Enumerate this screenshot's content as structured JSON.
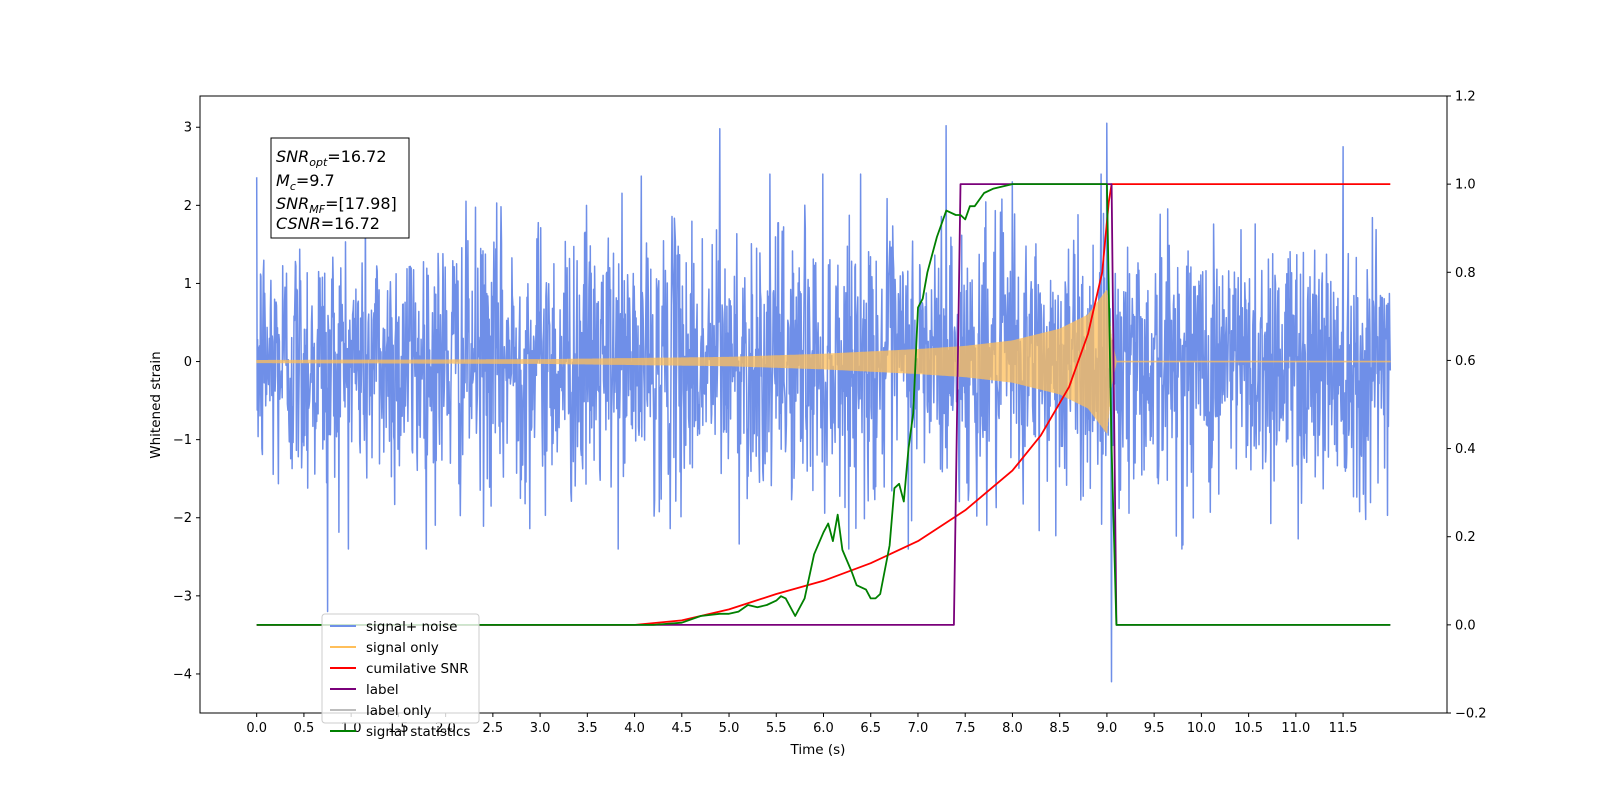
{
  "chart_data": {
    "type": "line",
    "xlabel": "Time (s)",
    "ylabel": "Whitened strain",
    "xlim": [
      -0.6,
      12.6
    ],
    "ylim": [
      -4.5,
      3.4
    ],
    "y2lim": [
      -0.2,
      1.2
    ],
    "x_ticks": [
      "0.0",
      "0.5",
      "1.0",
      "1.5",
      "2.0",
      "2.5",
      "3.0",
      "3.5",
      "4.0",
      "4.5",
      "5.0",
      "5.5",
      "6.0",
      "6.5",
      "7.0",
      "7.5",
      "8.0",
      "8.5",
      "9.0",
      "9.5",
      "10.0",
      "10.5",
      "11.0",
      "11.5"
    ],
    "y_ticks": [
      "3",
      "2",
      "1",
      "0",
      "−1",
      "−2",
      "−3",
      "−4"
    ],
    "y2_ticks": [
      "1.2",
      "1.0",
      "0.8",
      "0.6",
      "0.4",
      "0.2",
      "0.0",
      "−0.2"
    ],
    "grid": false,
    "legend_position": "lower-left",
    "annotation": {
      "snr_opt": {
        "base": "SNR",
        "sub": "opt",
        "value": "=16.72"
      },
      "mc": {
        "base": "M",
        "sub": "c",
        "value": "=9.7"
      },
      "snr_mf": {
        "base": "SNR",
        "sub": "MF",
        "value": "=[17.98]"
      },
      "csnr": {
        "base": "CSNR",
        "sub": "",
        "value": "=16.72"
      }
    },
    "series": [
      {
        "name": "signal+ noise",
        "color": "#6f8fe8",
        "axis": "left",
        "t_start": 0.0,
        "t_end": 12.0,
        "noise_sigma": 0.85,
        "peaks": [
          [
            0.75,
            -3.2
          ],
          [
            4.9,
            2.98
          ],
          [
            5.8,
            2.0
          ],
          [
            7.3,
            3.02
          ],
          [
            8.0,
            2.3
          ],
          [
            9.0,
            3.05
          ],
          [
            9.05,
            -4.1
          ],
          [
            11.5,
            2.75
          ]
        ]
      },
      {
        "name": "signal only",
        "color": "#ffbf5a",
        "axis": "left",
        "visible_envelope": {
          "x": [
            0.0,
            3.0,
            5.0,
            6.0,
            7.0,
            7.5,
            8.0,
            8.5,
            8.8,
            9.0,
            9.05,
            9.1,
            12.0
          ],
          "amp": [
            0.02,
            0.03,
            0.06,
            0.1,
            0.16,
            0.2,
            0.27,
            0.42,
            0.6,
            0.92,
            0.3,
            0.01,
            0.01
          ]
        }
      },
      {
        "name": "cumilative SNR",
        "color": "#ff0000",
        "axis": "right",
        "x": [
          0.0,
          3.5,
          4.0,
          4.5,
          5.0,
          5.5,
          6.0,
          6.5,
          7.0,
          7.5,
          8.0,
          8.3,
          8.6,
          8.8,
          8.95,
          9.02,
          9.05,
          9.06,
          12.0
        ],
        "y": [
          0.0,
          0.0,
          0.0,
          0.01,
          0.035,
          0.07,
          0.1,
          0.14,
          0.19,
          0.26,
          0.35,
          0.43,
          0.54,
          0.66,
          0.8,
          0.96,
          1.0,
          1.0,
          1.0
        ]
      },
      {
        "name": "label",
        "color": "#7a007a",
        "axis": "right",
        "x": [
          0.0,
          7.38,
          7.45,
          9.05,
          9.1,
          12.0
        ],
        "y": [
          0.0,
          0.0,
          1.0,
          1.0,
          0.0,
          0.0
        ]
      },
      {
        "name": "label only",
        "color": "#bdbdbd",
        "axis": "right",
        "x": [],
        "y": []
      },
      {
        "name": "signal statistics",
        "color": "#008000",
        "axis": "right",
        "x": [
          0.0,
          3.5,
          4.2,
          4.5,
          4.7,
          4.9,
          5.0,
          5.1,
          5.2,
          5.3,
          5.4,
          5.5,
          5.55,
          5.6,
          5.7,
          5.8,
          5.9,
          6.0,
          6.05,
          6.1,
          6.15,
          6.2,
          6.3,
          6.35,
          6.45,
          6.5,
          6.55,
          6.6,
          6.7,
          6.75,
          6.8,
          6.85,
          6.9,
          6.95,
          7.0,
          7.05,
          7.1,
          7.2,
          7.3,
          7.4,
          7.45,
          7.5,
          7.55,
          7.6,
          7.7,
          7.8,
          8.0,
          8.5,
          9.0,
          9.05,
          9.1,
          12.0
        ],
        "y": [
          0.0,
          0.0,
          0.0,
          0.005,
          0.02,
          0.025,
          0.025,
          0.03,
          0.045,
          0.04,
          0.045,
          0.055,
          0.065,
          0.06,
          0.02,
          0.06,
          0.16,
          0.21,
          0.23,
          0.19,
          0.25,
          0.17,
          0.12,
          0.09,
          0.08,
          0.06,
          0.06,
          0.07,
          0.18,
          0.31,
          0.32,
          0.28,
          0.4,
          0.48,
          0.72,
          0.74,
          0.8,
          0.88,
          0.94,
          0.93,
          0.93,
          0.92,
          0.95,
          0.95,
          0.98,
          0.99,
          1.0,
          1.0,
          1.0,
          0.4,
          0.0,
          0.0
        ]
      }
    ]
  }
}
